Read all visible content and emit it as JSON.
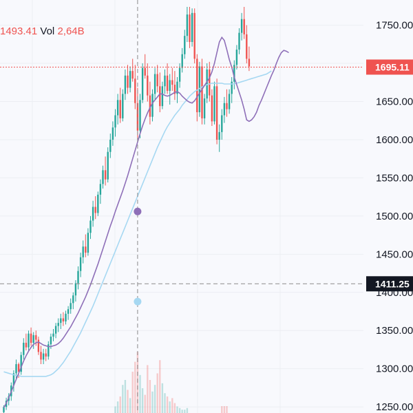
{
  "legend": {
    "price": "1493.41",
    "vol_label": "Vol",
    "vol_value": "2,64B"
  },
  "colors": {
    "background": "#f8f9fd",
    "up": "#26a69a",
    "down": "#ef5350",
    "ma_fast": "#8e6fb8",
    "ma_slow": "#a6d8f2",
    "crosshair": "#8a8a8a",
    "last_price_bg": "#ef5350",
    "crosshair_label_bg": "#131722"
  },
  "chart_data": {
    "type": "candlestick",
    "y_axis": {
      "position": "right",
      "range": [
        1242,
        1783
      ],
      "ticks": [
        1250,
        1300,
        1350,
        1400,
        1450,
        1500,
        1550,
        1600,
        1650,
        1700,
        1750
      ],
      "tick_labels": [
        "1250.00",
        "1300.00",
        "1350.00",
        "1400.00",
        "1450.00",
        "1500.00",
        "1550.00",
        "1600.00",
        "1650.00",
        "",
        "1750.00"
      ]
    },
    "last_price": {
      "value": 1695.11,
      "label": "1695.11"
    },
    "crosshair": {
      "price": 1411.25,
      "label": "1411.25",
      "bar_index": 54
    },
    "crosshair_markers": [
      {
        "series": "ma_fast",
        "value": 1506
      },
      {
        "series": "ma_slow",
        "value": 1388
      }
    ],
    "ma_fast_values": [
      1249,
      1255,
      1262,
      1270,
      1278,
      1286,
      1294,
      1302,
      1310,
      1317,
      1323,
      1328,
      1332,
      1334,
      1335,
      1333,
      1331,
      1330,
      1329,
      1329,
      1330,
      1331,
      1333,
      1336,
      1340,
      1345,
      1350,
      1355,
      1361,
      1367,
      1373,
      1380,
      1387,
      1394,
      1402,
      1410,
      1419,
      1428,
      1437,
      1447,
      1457,
      1467,
      1477,
      1487,
      1496,
      1506,
      1515,
      1524,
      1533,
      1543,
      1553,
      1564,
      1575,
      1586,
      1597,
      1608,
      1618,
      1627,
      1635,
      1642,
      1648,
      1652,
      1656,
      1660,
      1660,
      1658,
      1657,
      1658,
      1660,
      1662,
      1663,
      1661,
      1657,
      1654,
      1651,
      1649,
      1648,
      1651,
      1656,
      1661,
      1666,
      1671,
      1676,
      1681,
      1689,
      1700,
      1714,
      1728,
      1734,
      1730,
      1718,
      1705,
      1695,
      1682,
      1672,
      1662,
      1652,
      1640,
      1626,
      1624,
      1626,
      1630,
      1636,
      1645,
      1652,
      1660,
      1668,
      1676,
      1684,
      1691,
      1700,
      1708,
      1714,
      1717,
      1716,
      1714
    ],
    "ma_slow_values": [
      1296,
      1295,
      1294,
      1293,
      1292,
      1291,
      1291,
      1290,
      1290,
      1290,
      1290,
      1290,
      1290,
      1290,
      1290,
      1290,
      1290,
      1290,
      1291,
      1292,
      1294,
      1297,
      1300,
      1304,
      1308,
      1313,
      1318,
      1323,
      1329,
      1335,
      1341,
      1347,
      1354,
      1361,
      1368,
      1375,
      1382,
      1390,
      1398,
      1406,
      1414,
      1422,
      1430,
      1438,
      1446,
      1454,
      1462,
      1470,
      1478,
      1486,
      1494,
      1502,
      1510,
      1518,
      1526,
      1534,
      1542,
      1550,
      1558,
      1566,
      1574,
      1582,
      1590,
      1597,
      1604,
      1611,
      1617,
      1622,
      1627,
      1632,
      1636,
      1640,
      1645,
      1649,
      1653,
      1657,
      1660,
      1663,
      1665,
      1667,
      1669,
      1671,
      1672,
      1673,
      1674,
      1674,
      1674,
      1674,
      1674,
      1673,
      1673,
      1673,
      1673,
      1673,
      1674,
      1675,
      1676,
      1677,
      1678,
      1679,
      1680,
      1681,
      1682,
      1683,
      1684,
      1685,
      1686,
      1688,
      1690
    ],
    "candles": [
      [
        1243,
        1252,
        1240,
        1250
      ],
      [
        1250,
        1262,
        1246,
        1258
      ],
      [
        1258,
        1268,
        1252,
        1264
      ],
      [
        1264,
        1282,
        1258,
        1278
      ],
      [
        1278,
        1298,
        1270,
        1294
      ],
      [
        1294,
        1312,
        1286,
        1306
      ],
      [
        1306,
        1308,
        1288,
        1296
      ],
      [
        1296,
        1322,
        1292,
        1318
      ],
      [
        1318,
        1340,
        1312,
        1334
      ],
      [
        1334,
        1346,
        1324,
        1328
      ],
      [
        1328,
        1350,
        1322,
        1346
      ],
      [
        1346,
        1354,
        1330,
        1334
      ],
      [
        1334,
        1348,
        1326,
        1344
      ],
      [
        1344,
        1350,
        1330,
        1338
      ],
      [
        1338,
        1342,
        1318,
        1322
      ],
      [
        1322,
        1330,
        1306,
        1312
      ],
      [
        1312,
        1326,
        1306,
        1320
      ],
      [
        1320,
        1326,
        1310,
        1316
      ],
      [
        1316,
        1336,
        1312,
        1332
      ],
      [
        1332,
        1346,
        1326,
        1342
      ],
      [
        1342,
        1352,
        1336,
        1346
      ],
      [
        1346,
        1360,
        1340,
        1356
      ],
      [
        1356,
        1366,
        1348,
        1360
      ],
      [
        1360,
        1372,
        1352,
        1366
      ],
      [
        1366,
        1374,
        1356,
        1362
      ],
      [
        1362,
        1376,
        1358,
        1372
      ],
      [
        1372,
        1382,
        1364,
        1378
      ],
      [
        1378,
        1392,
        1372,
        1386
      ],
      [
        1386,
        1400,
        1378,
        1396
      ],
      [
        1396,
        1416,
        1388,
        1412
      ],
      [
        1412,
        1434,
        1404,
        1428
      ],
      [
        1428,
        1452,
        1420,
        1446
      ],
      [
        1446,
        1468,
        1438,
        1460
      ],
      [
        1460,
        1476,
        1446,
        1452
      ],
      [
        1452,
        1484,
        1448,
        1478
      ],
      [
        1478,
        1500,
        1470,
        1494
      ],
      [
        1494,
        1520,
        1486,
        1512
      ],
      [
        1512,
        1526,
        1496,
        1504
      ],
      [
        1504,
        1532,
        1500,
        1528
      ],
      [
        1528,
        1548,
        1516,
        1542
      ],
      [
        1542,
        1566,
        1536,
        1560
      ],
      [
        1560,
        1578,
        1540,
        1548
      ],
      [
        1548,
        1590,
        1544,
        1584
      ],
      [
        1584,
        1608,
        1576,
        1600
      ],
      [
        1600,
        1624,
        1592,
        1616
      ],
      [
        1616,
        1640,
        1604,
        1632
      ],
      [
        1632,
        1660,
        1620,
        1652
      ],
      [
        1652,
        1668,
        1622,
        1628
      ],
      [
        1628,
        1666,
        1624,
        1660
      ],
      [
        1660,
        1692,
        1652,
        1684
      ],
      [
        1684,
        1698,
        1660,
        1668
      ],
      [
        1668,
        1696,
        1662,
        1690
      ],
      [
        1690,
        1706,
        1676,
        1680
      ],
      [
        1680,
        1698,
        1640,
        1648
      ],
      [
        1648,
        1668,
        1600,
        1612
      ],
      [
        1612,
        1660,
        1602,
        1652
      ],
      [
        1652,
        1700,
        1648,
        1694
      ],
      [
        1694,
        1712,
        1680,
        1684
      ],
      [
        1684,
        1700,
        1650,
        1658
      ],
      [
        1658,
        1676,
        1620,
        1630
      ],
      [
        1630,
        1666,
        1624,
        1660
      ],
      [
        1660,
        1694,
        1652,
        1686
      ],
      [
        1686,
        1698,
        1662,
        1670
      ],
      [
        1670,
        1688,
        1636,
        1644
      ],
      [
        1644,
        1676,
        1640,
        1670
      ],
      [
        1670,
        1692,
        1660,
        1684
      ],
      [
        1684,
        1700,
        1660,
        1664
      ],
      [
        1664,
        1686,
        1646,
        1678
      ],
      [
        1678,
        1694,
        1664,
        1672
      ],
      [
        1672,
        1690,
        1652,
        1660
      ],
      [
        1660,
        1682,
        1648,
        1676
      ],
      [
        1676,
        1700,
        1668,
        1694
      ],
      [
        1694,
        1720,
        1688,
        1712
      ],
      [
        1712,
        1744,
        1706,
        1736
      ],
      [
        1736,
        1774,
        1728,
        1764
      ],
      [
        1764,
        1774,
        1720,
        1728
      ],
      [
        1728,
        1772,
        1722,
        1766
      ],
      [
        1766,
        1772,
        1700,
        1706
      ],
      [
        1706,
        1712,
        1624,
        1636
      ],
      [
        1636,
        1702,
        1630,
        1696
      ],
      [
        1696,
        1706,
        1620,
        1628
      ],
      [
        1628,
        1660,
        1620,
        1654
      ],
      [
        1654,
        1700,
        1648,
        1692
      ],
      [
        1692,
        1702,
        1650,
        1658
      ],
      [
        1658,
        1666,
        1618,
        1624
      ],
      [
        1624,
        1676,
        1620,
        1670
      ],
      [
        1670,
        1680,
        1594,
        1600
      ],
      [
        1600,
        1620,
        1584,
        1610
      ],
      [
        1610,
        1640,
        1600,
        1632
      ],
      [
        1632,
        1656,
        1622,
        1648
      ],
      [
        1648,
        1666,
        1630,
        1640
      ],
      [
        1640,
        1666,
        1634,
        1660
      ],
      [
        1660,
        1682,
        1648,
        1676
      ],
      [
        1676,
        1704,
        1666,
        1698
      ],
      [
        1698,
        1724,
        1692,
        1718
      ],
      [
        1718,
        1746,
        1712,
        1740
      ],
      [
        1740,
        1766,
        1730,
        1758
      ],
      [
        1758,
        1774,
        1732,
        1738
      ],
      [
        1738,
        1750,
        1700,
        1706
      ],
      [
        1706,
        1722,
        1690,
        1696
      ]
    ]
  }
}
